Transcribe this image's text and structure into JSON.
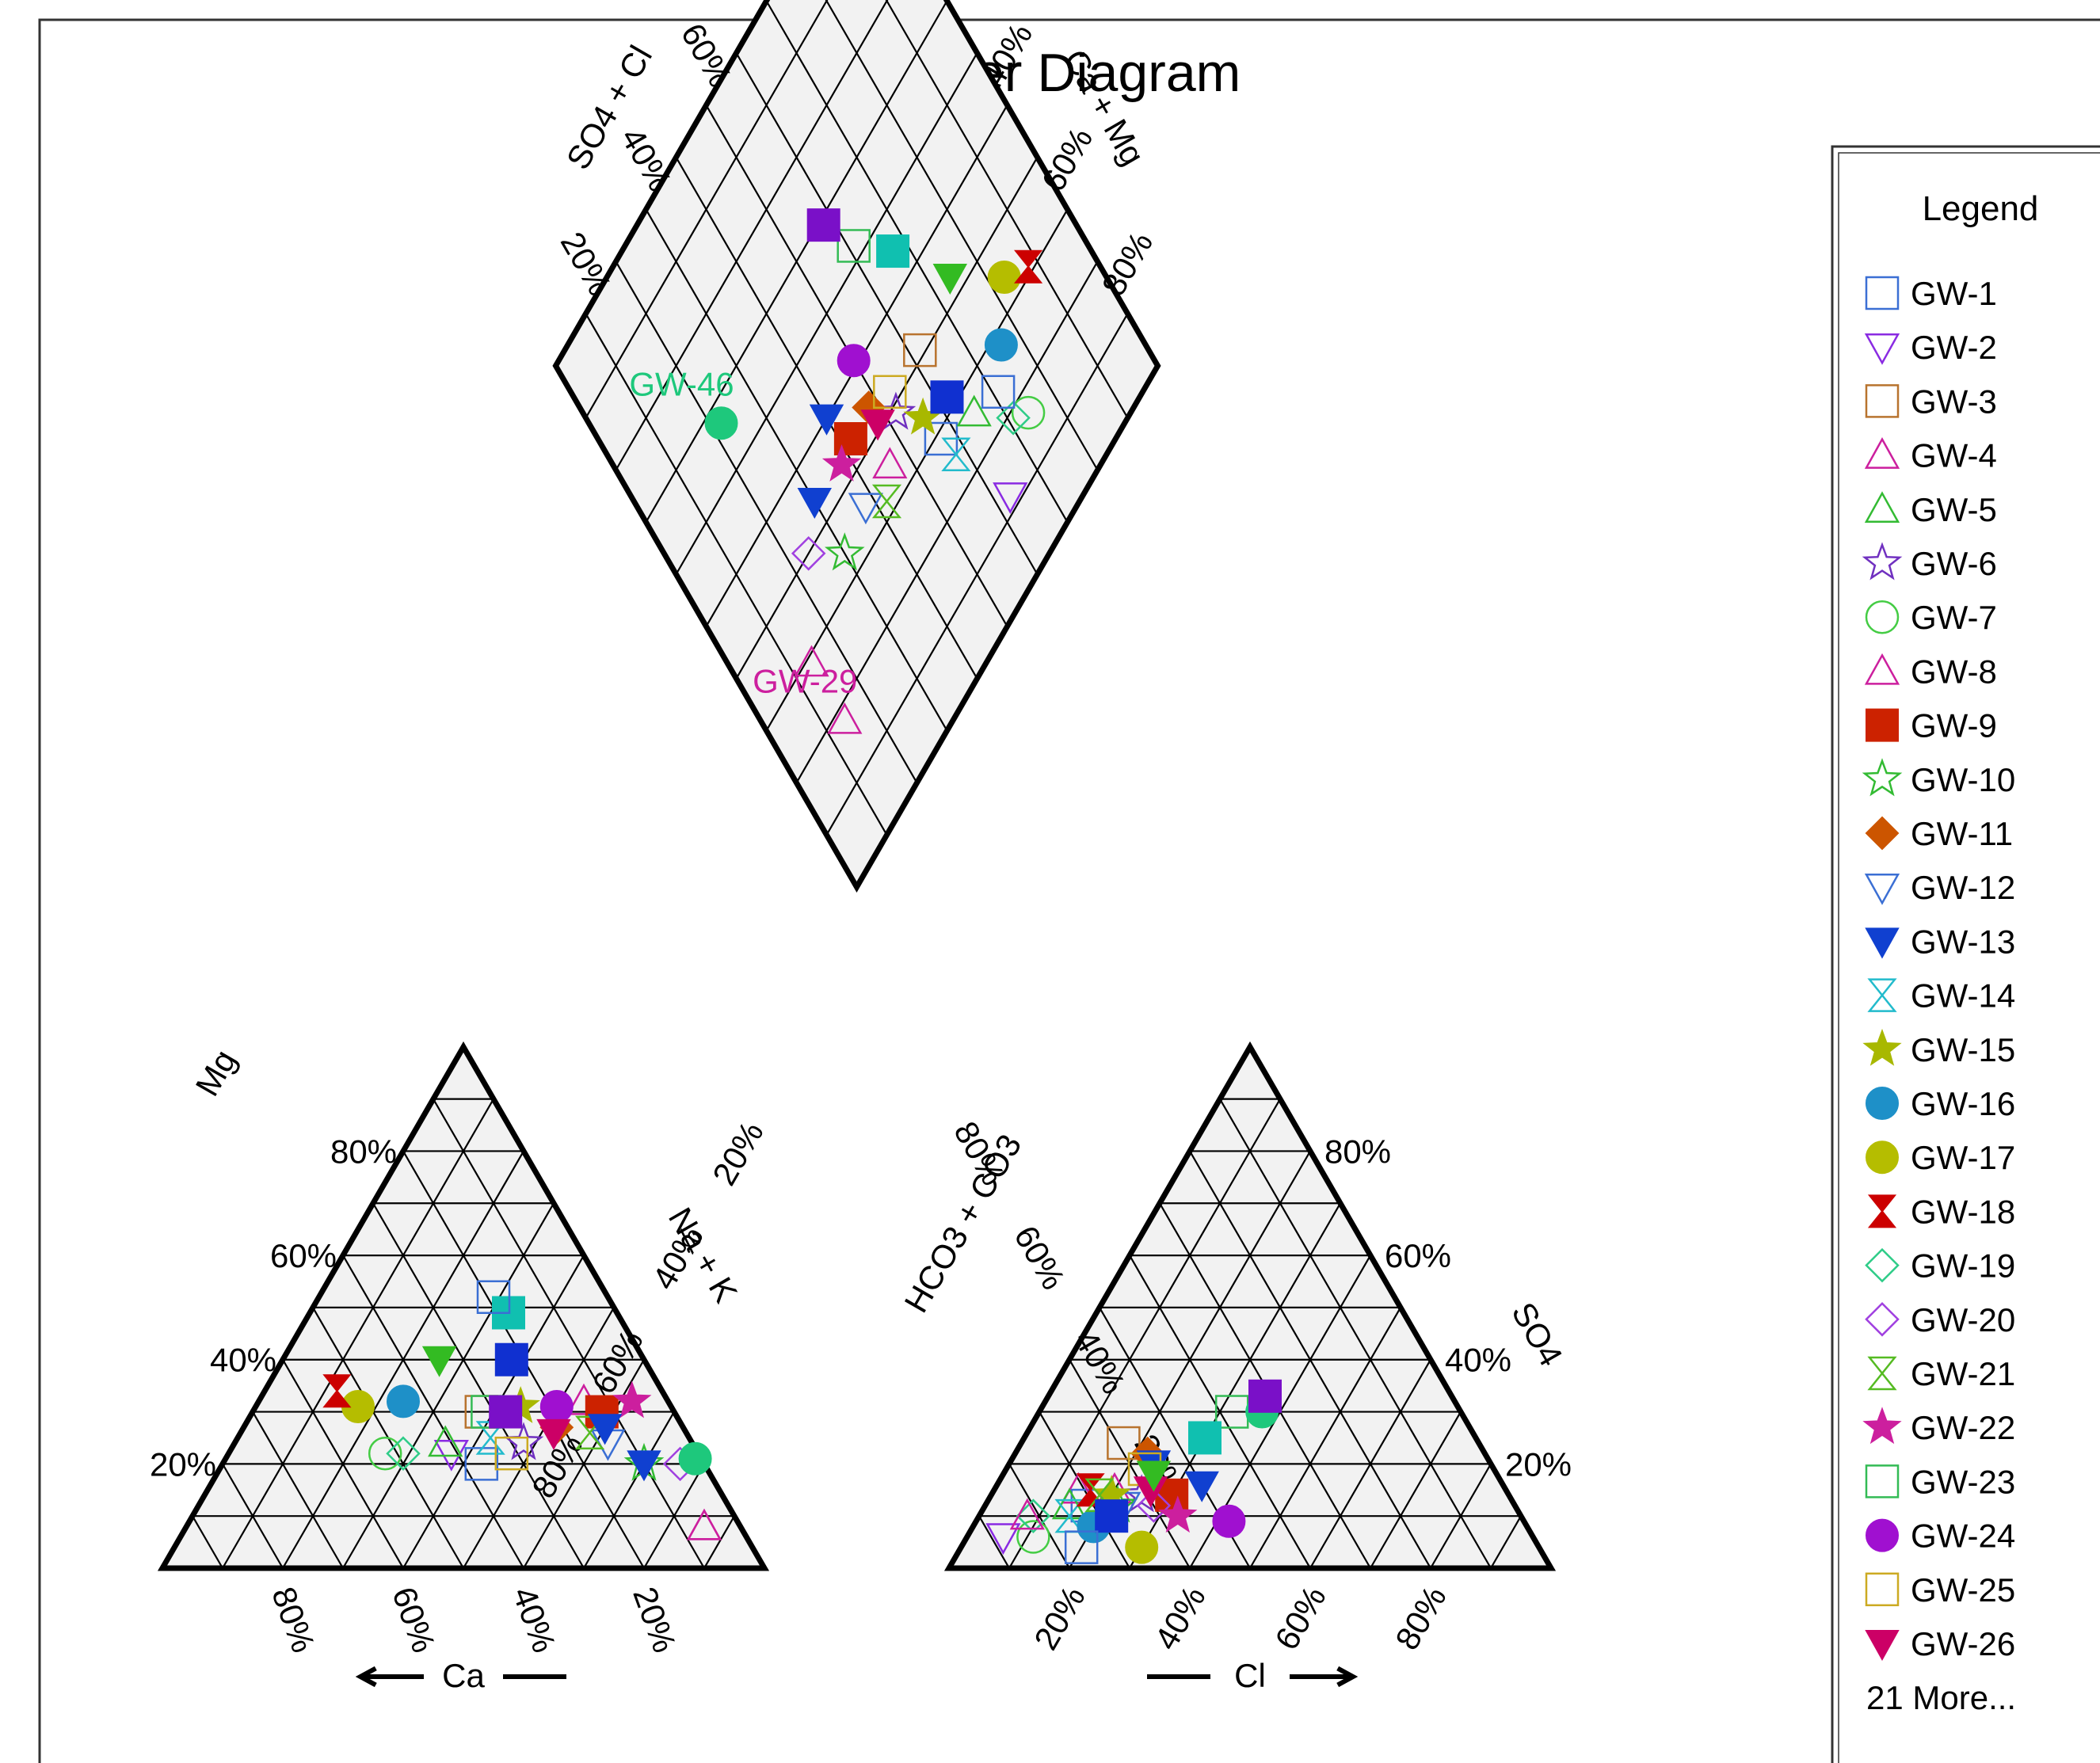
{
  "chart_data": {
    "type": "scatter",
    "subtype": "piper",
    "title": "Piper Diagram",
    "legend": {
      "title": "Legend",
      "placement": "right",
      "overflow_text": "21 More..."
    },
    "axes": {
      "cation_left": "Ca",
      "cation_right": "Mg",
      "cation_middle": "Na + K",
      "anion_right": "SO4",
      "anion_left": "HCO3 + CO3",
      "anion_bottom": "Cl",
      "diamond_left": "SO4 + Cl",
      "diamond_right": "Ca + Mg"
    },
    "tick_labels": [
      "20%",
      "40%",
      "60%",
      "80%"
    ],
    "grid": true,
    "series": [
      {
        "name": "GW-1",
        "marker": "square",
        "filled": false,
        "color": "#3b6fd4",
        "mg": 20,
        "nak": 43,
        "so4": 12,
        "cl": 17
      },
      {
        "name": "GW-2",
        "marker": "triangle-down",
        "filled": false,
        "color": "#8a2be2",
        "mg": 22,
        "nak": 37,
        "so4": 6,
        "cl": 6
      },
      {
        "name": "GW-3",
        "marker": "square",
        "filled": false,
        "color": "#b8732e",
        "mg": 30,
        "nak": 38,
        "so4": 24,
        "cl": 17
      },
      {
        "name": "GW-4",
        "marker": "triangle",
        "filled": false,
        "color": "#cc1f9e",
        "mg": 8,
        "nak": 86,
        "so4": 15,
        "cl": 14
      },
      {
        "name": "GW-5",
        "marker": "triangle",
        "filled": false,
        "color": "#33bb33",
        "mg": 24,
        "nak": 35,
        "so4": 12,
        "cl": 14
      },
      {
        "name": "GW-6",
        "marker": "star",
        "filled": false,
        "color": "#7030c0",
        "mg": 24,
        "nak": 48,
        "so4": 14,
        "cl": 25
      },
      {
        "name": "GW-7",
        "marker": "circle",
        "filled": false,
        "color": "#44cc44",
        "mg": 22,
        "nak": 26,
        "so4": 6,
        "cl": 11
      },
      {
        "name": "GW-8",
        "marker": "triangle",
        "filled": false,
        "color": "#cc1f9e",
        "mg": 32,
        "nak": 54,
        "so4": 15,
        "cl": 20
      },
      {
        "name": "GW-9",
        "marker": "square-filled",
        "filled": true,
        "color": "#cc2200",
        "mg": 30,
        "nak": 58,
        "so4": 14,
        "cl": 30
      },
      {
        "name": "GW-10",
        "marker": "star",
        "filled": false,
        "color": "#33bb33",
        "mg": 20,
        "nak": 70,
        "so4": 12,
        "cl": 22
      },
      {
        "name": "GW-11",
        "marker": "diamond-filled",
        "filled": true,
        "color": "#cc5500",
        "mg": 27,
        "nak": 52,
        "so4": 22,
        "cl": 22
      },
      {
        "name": "GW-12",
        "marker": "triangle-down",
        "filled": false,
        "color": "#3b6fd4",
        "mg": 24,
        "nak": 62,
        "so4": 12,
        "cl": 23
      },
      {
        "name": "GW-13",
        "marker": "triangle-down-filled",
        "filled": true,
        "color": "#1040d0",
        "mg": 20,
        "nak": 70,
        "so4": 20,
        "cl": 24
      },
      {
        "name": "GW-14",
        "marker": "hourglass",
        "filled": false,
        "color": "#22bbcc",
        "mg": 25,
        "nak": 42,
        "so4": 10,
        "cl": 15
      },
      {
        "name": "GW-15",
        "marker": "star-filled",
        "filled": true,
        "color": "#a8b800",
        "mg": 31,
        "nak": 44,
        "so4": 14,
        "cl": 20
      },
      {
        "name": "GW-16",
        "marker": "circle-filled",
        "filled": true,
        "color": "#1e90c8",
        "mg": 32,
        "nak": 24,
        "so4": 8,
        "cl": 20
      },
      {
        "name": "GW-17",
        "marker": "circle-filled",
        "filled": true,
        "color": "#b5bd00",
        "mg": 31,
        "nak": 17,
        "so4": 4,
        "cl": 30
      },
      {
        "name": "GW-18",
        "marker": "hourglass-filled",
        "filled": true,
        "color": "#cc0000",
        "mg": 34,
        "nak": 12,
        "so4": 15,
        "cl": 16
      },
      {
        "name": "GW-19",
        "marker": "diamond",
        "filled": false,
        "color": "#2ecc88",
        "mg": 22,
        "nak": 29,
        "so4": 10,
        "cl": 9
      },
      {
        "name": "GW-20",
        "marker": "diamond",
        "filled": false,
        "color": "#a040e0",
        "mg": 20,
        "nak": 76,
        "so4": 12,
        "cl": 28
      },
      {
        "name": "GW-21",
        "marker": "hourglass",
        "filled": false,
        "color": "#55bb22",
        "mg": 26,
        "nak": 58,
        "so4": 14,
        "cl": 18
      },
      {
        "name": "GW-22",
        "marker": "star-filled",
        "filled": true,
        "color": "#cc1f9e",
        "mg": 32,
        "nak": 62,
        "so4": 10,
        "cl": 33
      },
      {
        "name": "GW-23",
        "marker": "square",
        "filled": false,
        "color": "#33bb55",
        "mg": 30,
        "nak": 39,
        "so4": 30,
        "cl": 32
      },
      {
        "name": "GW-24",
        "marker": "circle-filled",
        "filled": true,
        "color": "#a010d0",
        "mg": 31,
        "nak": 50,
        "so4": 9,
        "cl": 42
      },
      {
        "name": "GW-25",
        "marker": "square",
        "filled": false,
        "color": "#ccaa22",
        "mg": 22,
        "nak": 47,
        "so4": 19,
        "cl": 23
      },
      {
        "name": "GW-26",
        "marker": "triangle-down-filled",
        "filled": true,
        "color": "#cc0066",
        "mg": 26,
        "nak": 52,
        "so4": 15,
        "cl": 26
      }
    ],
    "extra_points": [
      {
        "name": "GW-46",
        "marker": "circle-filled",
        "filled": true,
        "color": "#1ec87c",
        "mg": 21,
        "nak": 78,
        "so4": 30,
        "cl": 37,
        "label_shown": true
      },
      {
        "name": "GW-29",
        "marker": "triangle",
        "filled": false,
        "color": "#cc1f9e",
        "mg": 8,
        "nak": 86,
        "so4": 10,
        "cl": 8,
        "label_shown": true
      },
      {
        "name": "",
        "marker": "square-filled",
        "filled": true,
        "color": "#7a10c8",
        "mg": 30,
        "nak": 42,
        "so4": 33,
        "cl": 36
      },
      {
        "name": "",
        "marker": "square-filled",
        "filled": true,
        "color": "#10c0b0",
        "mg": 49,
        "nak": 33,
        "so4": 25,
        "cl": 30
      },
      {
        "name": "",
        "marker": "square-filled",
        "filled": true,
        "color": "#1030d0",
        "mg": 40,
        "nak": 38,
        "so4": 10,
        "cl": 22
      },
      {
        "name": "",
        "marker": "square",
        "filled": false,
        "color": "#3b6fd4",
        "mg": 52,
        "nak": 29,
        "so4": 4,
        "cl": 20
      },
      {
        "name": "",
        "marker": "triangle-down-filled",
        "filled": true,
        "color": "#33bb22",
        "mg": 40,
        "nak": 26,
        "so4": 18,
        "cl": 25
      },
      {
        "name": "",
        "marker": "triangle-down-filled",
        "filled": true,
        "color": "#1040d0",
        "mg": 27,
        "nak": 60,
        "so4": 16,
        "cl": 34
      }
    ]
  }
}
